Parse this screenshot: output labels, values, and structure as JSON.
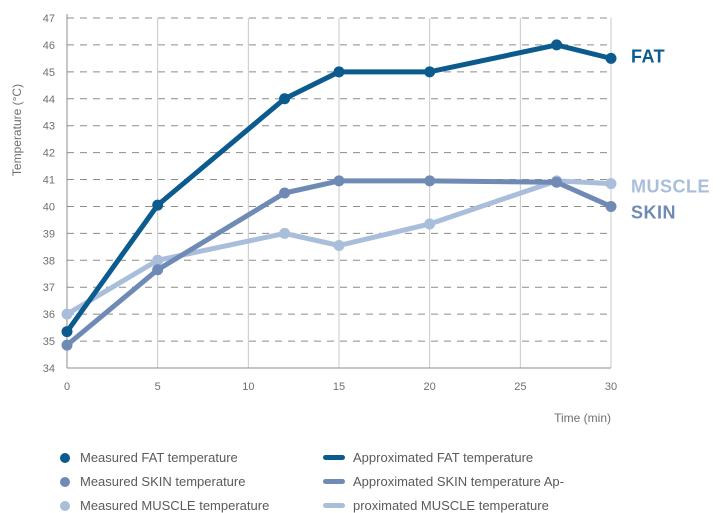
{
  "chart_data": {
    "type": "line",
    "xlabel": "Time (min)",
    "ylabel": "Temperature (°C)",
    "xlim": [
      0,
      30
    ],
    "ylim": [
      34,
      47
    ],
    "xticks": [
      0,
      5,
      10,
      15,
      20,
      25,
      30
    ],
    "yticks": [
      34,
      35,
      36,
      37,
      38,
      39,
      40,
      41,
      42,
      43,
      44,
      45,
      46,
      47
    ],
    "grid": "horizontal dashed + vertical solid",
    "series": [
      {
        "name": "FAT",
        "color": "#0b5b8e",
        "x": [
          0,
          5,
          12,
          15,
          20,
          27,
          30
        ],
        "y": [
          35.35,
          40.05,
          44.0,
          45.0,
          45.0,
          46.0,
          45.5
        ]
      },
      {
        "name": "SKIN",
        "color": "#6f8bb5",
        "x": [
          0,
          5,
          12,
          15,
          20,
          27,
          30
        ],
        "y": [
          34.85,
          37.65,
          40.5,
          40.95,
          40.95,
          40.9,
          40.0
        ]
      },
      {
        "name": "MUSCLE",
        "color": "#a9bedb",
        "x": [
          0,
          5,
          12,
          15,
          20,
          27,
          30
        ],
        "y": [
          36.0,
          38.0,
          39.0,
          38.55,
          39.35,
          40.95,
          40.85
        ]
      }
    ],
    "legend": [
      {
        "label": "Measured FAT temperature",
        "kind": "dot",
        "color": "#0b5b8e"
      },
      {
        "label": "Approximated FAT temperature",
        "kind": "line",
        "color": "#0b5b8e"
      },
      {
        "label": "Measured SKIN temperature",
        "kind": "dot",
        "color": "#6f8bb5"
      },
      {
        "label": "Approximated SKIN temperature Ap-",
        "kind": "line",
        "color": "#6f8bb5"
      },
      {
        "label": "Measured MUSCLE temperature",
        "kind": "dot",
        "color": "#a9bedb"
      },
      {
        "label": "proximated MUSCLE temperature",
        "kind": "line",
        "color": "#a9bedb"
      }
    ]
  }
}
